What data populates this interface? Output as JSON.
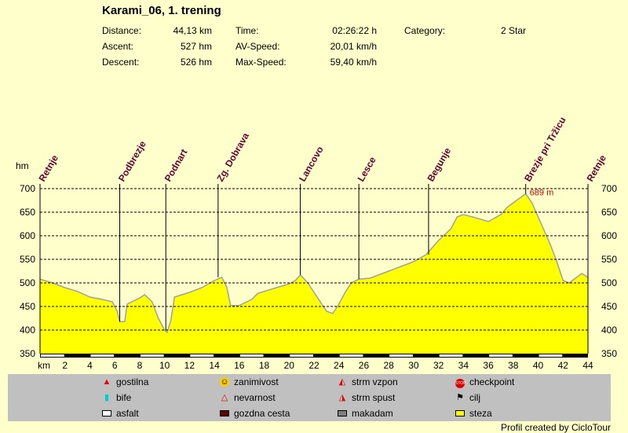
{
  "header": {
    "title": "Karami_06, 1. trening",
    "stats": [
      {
        "label": "Distance:",
        "value": "44,13 km"
      },
      {
        "label": "Ascent:",
        "value": "527 hm"
      },
      {
        "label": "Descent:",
        "value": "526 hm"
      },
      {
        "label": "Time:",
        "value": "02:26:22 h"
      },
      {
        "label": "AV-Speed:",
        "value": "20,01 km/h"
      },
      {
        "label": "Max-Speed:",
        "value": "59,40 km/h"
      },
      {
        "label": "Category:",
        "value": "2 Star"
      }
    ]
  },
  "chart_data": {
    "type": "area",
    "xlabel": "km",
    "ylabel": "hm",
    "xlim": [
      0,
      44
    ],
    "ylim": [
      350,
      700
    ],
    "yticks": [
      350,
      400,
      450,
      500,
      550,
      600,
      650,
      700
    ],
    "xticks": [
      2,
      4,
      6,
      8,
      10,
      12,
      14,
      16,
      18,
      20,
      22,
      24,
      26,
      28,
      30,
      32,
      34,
      36,
      38,
      40,
      42,
      44
    ],
    "grid": true,
    "fill_color": "#ffff00",
    "max_label": "689 m",
    "max_point": [
      39,
      689
    ],
    "waypoints": [
      {
        "name": "Retnje",
        "km": 0
      },
      {
        "name": "Podbrezje",
        "km": 6.4
      },
      {
        "name": "Podnart",
        "km": 10.1
      },
      {
        "name": "Zg. Dobrava",
        "km": 14.3
      },
      {
        "name": "Lancovo",
        "km": 20.9
      },
      {
        "name": "Lesce",
        "km": 25.6
      },
      {
        "name": "Begunje",
        "km": 31.2
      },
      {
        "name": "Brezje pri Tržicu",
        "km": 39.0
      },
      {
        "name": "Retnje",
        "km": 44
      }
    ],
    "profile": [
      [
        0,
        508
      ],
      [
        1,
        500
      ],
      [
        2,
        490
      ],
      [
        3,
        482
      ],
      [
        4,
        470
      ],
      [
        5,
        465
      ],
      [
        5.8,
        460
      ],
      [
        6.2,
        440
      ],
      [
        6.4,
        418
      ],
      [
        6.8,
        418
      ],
      [
        7,
        455
      ],
      [
        8,
        468
      ],
      [
        8.4,
        475
      ],
      [
        9,
        460
      ],
      [
        9.5,
        425
      ],
      [
        10,
        400
      ],
      [
        10.2,
        395
      ],
      [
        10.5,
        420
      ],
      [
        10.8,
        470
      ],
      [
        12,
        480
      ],
      [
        13,
        490
      ],
      [
        14,
        505
      ],
      [
        14.6,
        512
      ],
      [
        15,
        490
      ],
      [
        15.3,
        452
      ],
      [
        16,
        452
      ],
      [
        17,
        465
      ],
      [
        17.5,
        478
      ],
      [
        18,
        482
      ],
      [
        19,
        490
      ],
      [
        20,
        498
      ],
      [
        20.5,
        505
      ],
      [
        20.9,
        517
      ],
      [
        21.5,
        500
      ],
      [
        22,
        480
      ],
      [
        23,
        440
      ],
      [
        23.5,
        435
      ],
      [
        24,
        455
      ],
      [
        24.5,
        480
      ],
      [
        25,
        500
      ],
      [
        25.6,
        508
      ],
      [
        26.5,
        510
      ],
      [
        27,
        515
      ],
      [
        28,
        525
      ],
      [
        29,
        535
      ],
      [
        30,
        545
      ],
      [
        31,
        560
      ],
      [
        31.5,
        575
      ],
      [
        32,
        590
      ],
      [
        33,
        615
      ],
      [
        33.5,
        640
      ],
      [
        34,
        645
      ],
      [
        35,
        638
      ],
      [
        36,
        630
      ],
      [
        37,
        645
      ],
      [
        37.5,
        660
      ],
      [
        38,
        670
      ],
      [
        39,
        689
      ],
      [
        39.5,
        670
      ],
      [
        40,
        640
      ],
      [
        41,
        580
      ],
      [
        41.5,
        545
      ],
      [
        42,
        505
      ],
      [
        42.5,
        500
      ],
      [
        43,
        510
      ],
      [
        43.5,
        520
      ],
      [
        44,
        512
      ]
    ]
  },
  "legend": [
    {
      "label": "gostilna",
      "icon": "restaurant-icon"
    },
    {
      "label": "zanimivost",
      "icon": "smiley-icon"
    },
    {
      "label": "strm vzpon",
      "icon": "steep-climb-icon"
    },
    {
      "label": "checkpoint",
      "icon": "stop-icon"
    },
    {
      "label": "bife",
      "icon": "drink-icon"
    },
    {
      "label": "nevarnost",
      "icon": "danger-icon"
    },
    {
      "label": "strm spust",
      "icon": "steep-descent-icon"
    },
    {
      "label": "cilj",
      "icon": "finish-flag-icon"
    },
    {
      "label": "asfalt",
      "icon": "asphalt-swatch",
      "color": "#ffffff"
    },
    {
      "label": "gozdna cesta",
      "icon": "forest-road-swatch",
      "color": "#600000"
    },
    {
      "label": "makadam",
      "icon": "gravel-swatch",
      "color": "#808080"
    },
    {
      "label": "steza",
      "icon": "trail-swatch",
      "color": "#ffff00"
    }
  ],
  "credit": "Profil created by CicloTour"
}
